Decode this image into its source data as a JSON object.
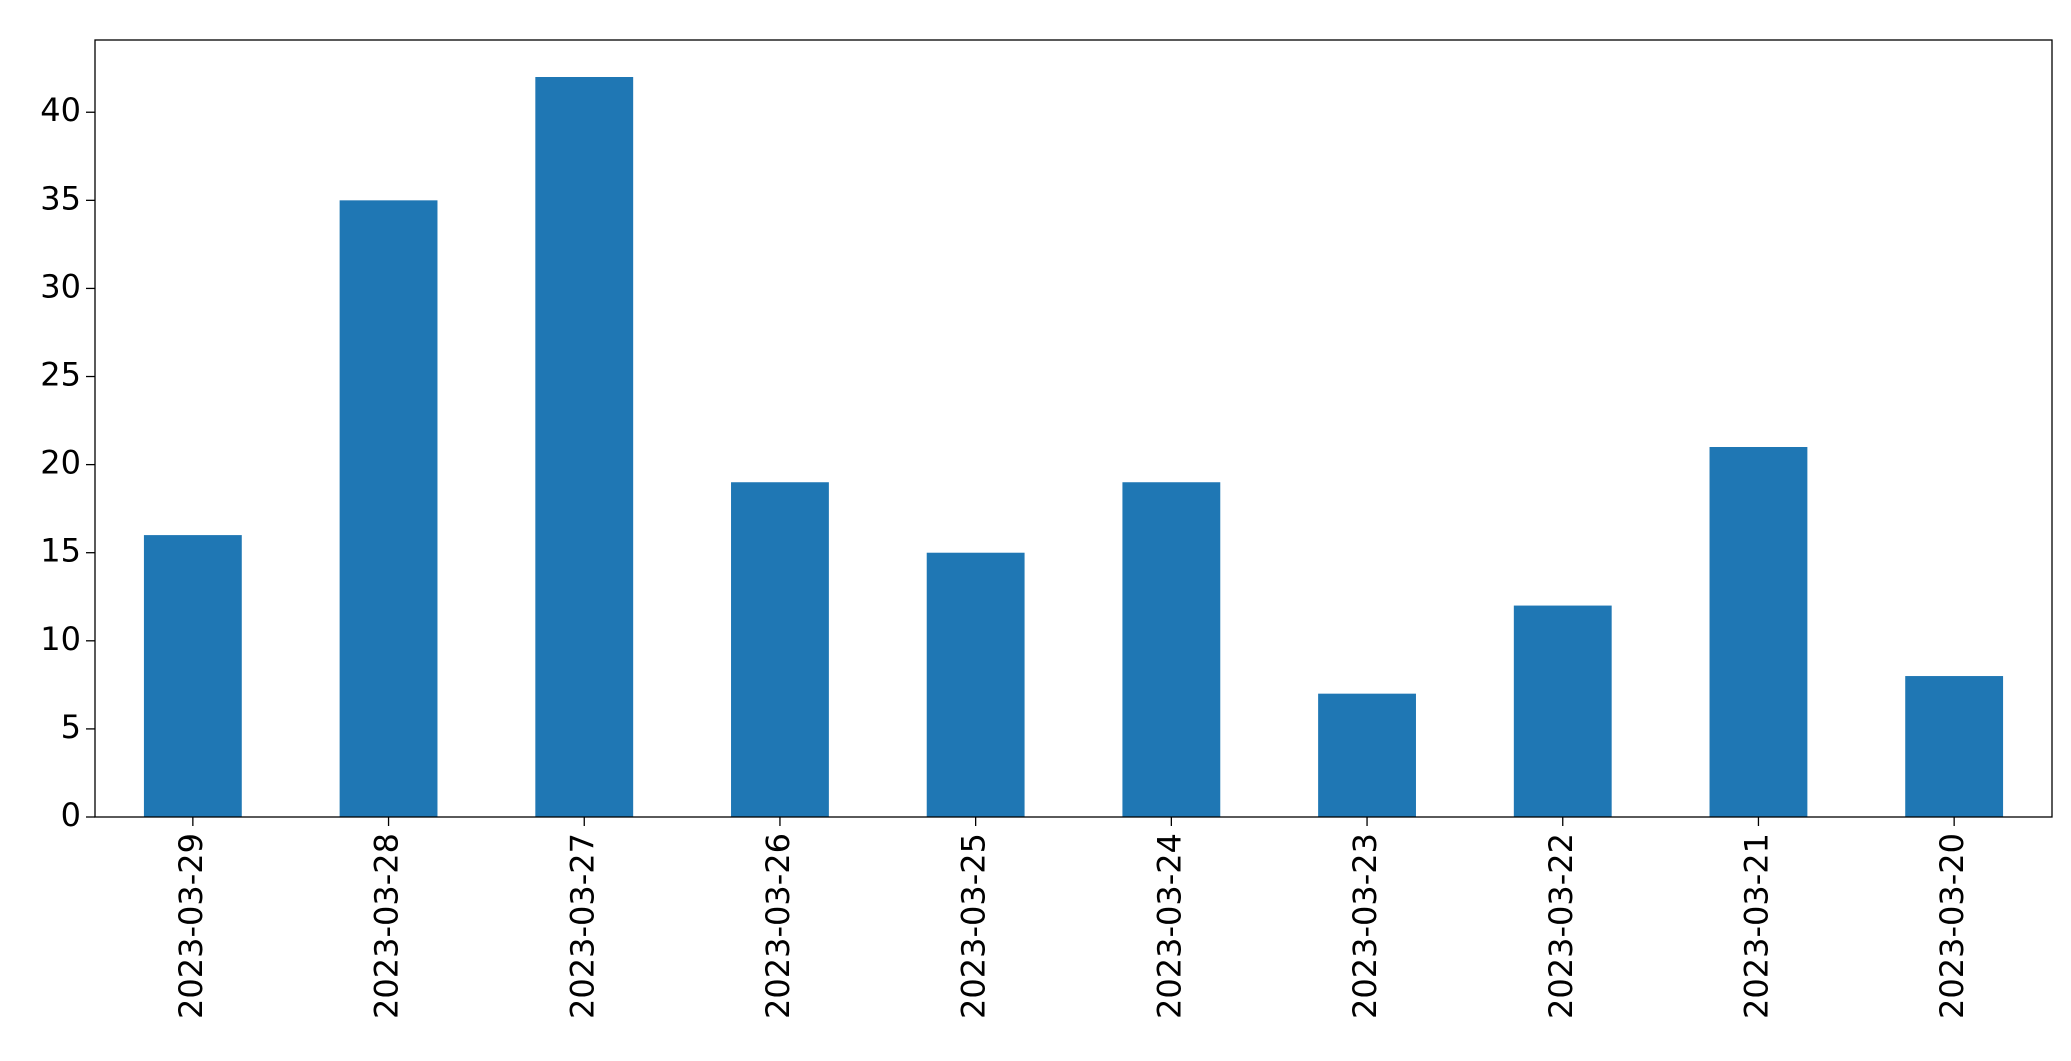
{
  "chart_data": {
    "type": "bar",
    "categories": [
      "2023-03-29",
      "2023-03-28",
      "2023-03-27",
      "2023-03-26",
      "2023-03-25",
      "2023-03-24",
      "2023-03-23",
      "2023-03-22",
      "2023-03-21",
      "2023-03-20"
    ],
    "values": [
      16,
      35,
      42,
      19,
      15,
      19,
      7,
      12,
      21,
      8
    ],
    "color": "#1f77b4",
    "ylim": [
      0,
      44.1
    ],
    "yticks": [
      0,
      5,
      10,
      15,
      20,
      25,
      30,
      35,
      40
    ],
    "grid": false
  }
}
